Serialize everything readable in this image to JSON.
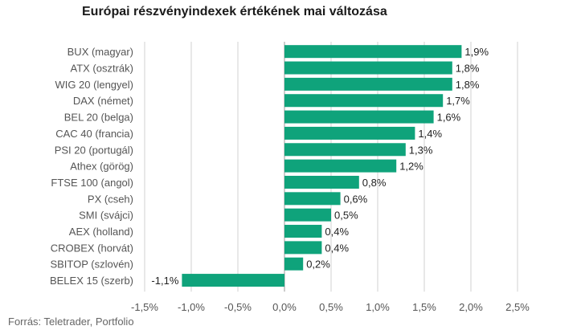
{
  "title": "Európai részvényindexek értékének mai változása",
  "source": "Forrás: Teletrader, Portfolio",
  "colors": {
    "bar": "#0fa37b",
    "grid": "#d0d0d0",
    "zero_axis": "#999999",
    "label": "#555555",
    "value_label": "#222222"
  },
  "chart_data": {
    "type": "bar",
    "orientation": "horizontal",
    "title": "Európai részvényindexek értékének mai változása",
    "categories": [
      "BUX (magyar)",
      "ATX (osztrák)",
      "WIG 20 (lengyel)",
      "DAX (német)",
      "BEL 20 (belga)",
      "CAC 40 (francia)",
      "PSI 20 (portugál)",
      "Athex (görög)",
      "FTSE 100 (angol)",
      "PX (cseh)",
      "SMI (svájci)",
      "AEX (holland)",
      "CROBEX (horvát)",
      "SBITOP (szlovén)",
      "BELEX 15 (szerb)"
    ],
    "values": [
      1.9,
      1.8,
      1.8,
      1.7,
      1.6,
      1.4,
      1.3,
      1.2,
      0.8,
      0.6,
      0.5,
      0.4,
      0.4,
      0.2,
      -1.1
    ],
    "value_labels": [
      "1,9%",
      "1,8%",
      "1,8%",
      "1,7%",
      "1,6%",
      "1,4%",
      "1,3%",
      "1,2%",
      "0,8%",
      "0,6%",
      "0,5%",
      "0,4%",
      "0,4%",
      "0,2%",
      "-1,1%"
    ],
    "xlim": [
      -1.5,
      2.5
    ],
    "xticks": [
      -1.5,
      -1.0,
      -0.5,
      0.0,
      0.5,
      1.0,
      1.5,
      2.0,
      2.5
    ],
    "xtick_labels": [
      "-1,5%",
      "-1,0%",
      "-0,5%",
      "0,0%",
      "0,5%",
      "1,0%",
      "1,5%",
      "2,0%",
      "2,5%"
    ],
    "grid": true,
    "legend": "none"
  }
}
